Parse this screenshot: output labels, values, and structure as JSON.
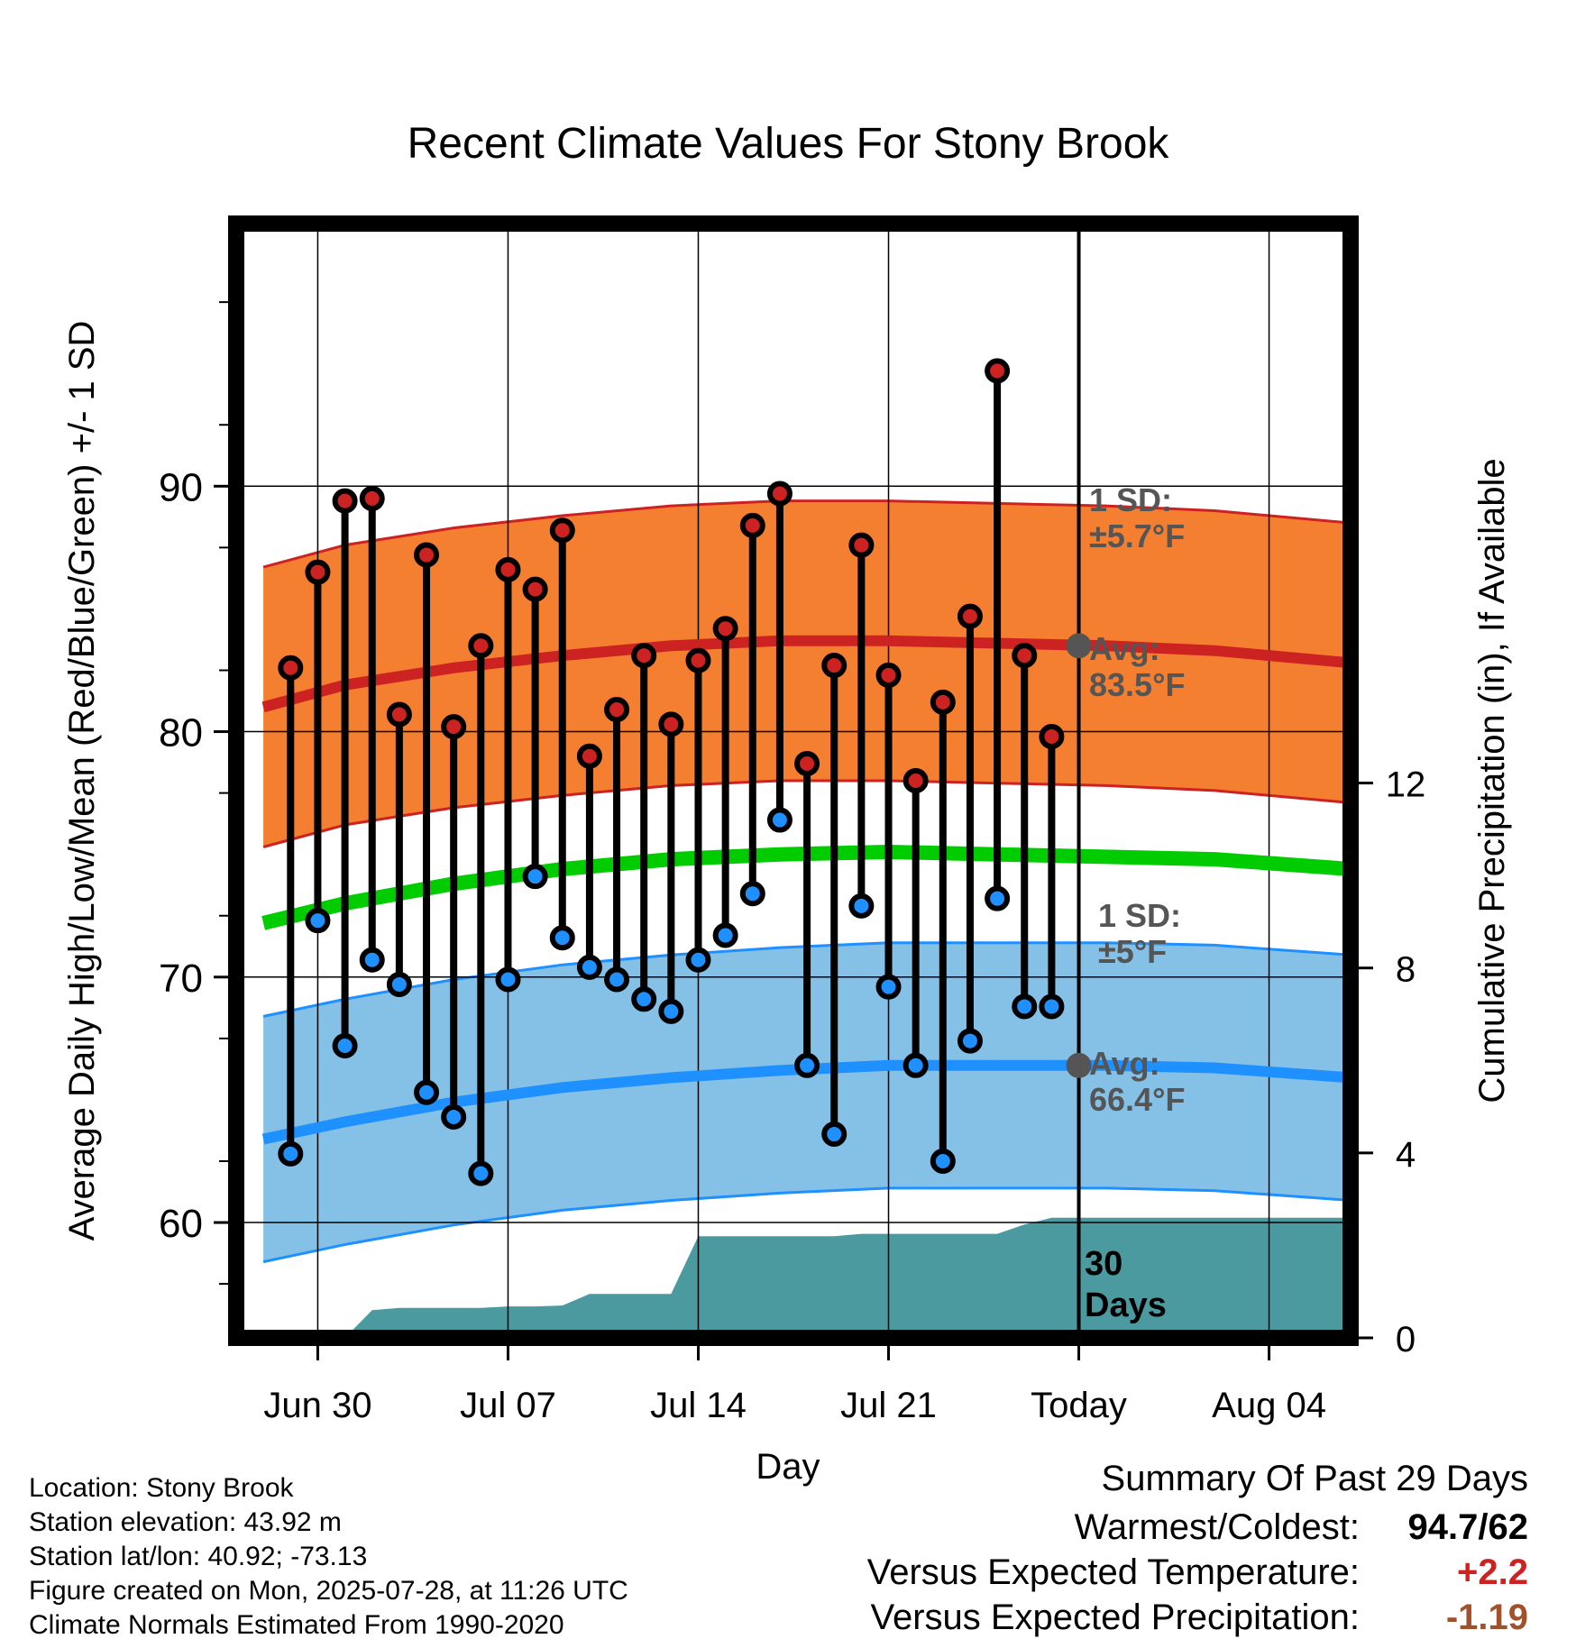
{
  "chart_data": {
    "type": "line",
    "title": "Recent Climate Values For Stony Brook",
    "xlabel": "Day",
    "ylabel": "Average Daily High/Low/Mean (Red/Blue/Green) +/- 1 SD",
    "y2label": "Cumulative Precipitation (in), If Available",
    "x_tick_labels": [
      "Jun 30",
      "Jul 07",
      "Jul 14",
      "Jul 21",
      "Today",
      "Aug 04"
    ],
    "y_ticks": [
      60,
      70,
      80,
      90
    ],
    "y2_ticks": [
      0,
      4,
      8,
      12
    ],
    "ylim": [
      55.3,
      100.7
    ],
    "y2lim": [
      0,
      24.1
    ],
    "grid": true,
    "today_label": "30\nDays",
    "annotations": {
      "high_sd": "1 SD:\n±5.7°F",
      "high_avg": "Avg:\n83.5°F",
      "low_sd": "1 SD:\n±5°F",
      "low_avg": "Avg:\n66.4°F"
    },
    "colors": {
      "high": "#cc2222",
      "high_band": "#f57f30",
      "low": "#1e90ff",
      "low_band": "#85c1e6",
      "mean": "#00cc00",
      "precip": "#4a9aa0",
      "annotation": "#555555"
    },
    "series": [
      {
        "name": "High",
        "x": [
          "2025-06-29",
          "2025-06-30",
          "2025-07-01",
          "2025-07-02",
          "2025-07-03",
          "2025-07-04",
          "2025-07-05",
          "2025-07-06",
          "2025-07-07",
          "2025-07-08",
          "2025-07-09",
          "2025-07-10",
          "2025-07-11",
          "2025-07-12",
          "2025-07-13",
          "2025-07-14",
          "2025-07-15",
          "2025-07-16",
          "2025-07-17",
          "2025-07-18",
          "2025-07-19",
          "2025-07-20",
          "2025-07-21",
          "2025-07-22",
          "2025-07-23",
          "2025-07-24",
          "2025-07-25",
          "2025-07-26",
          "2025-07-27"
        ],
        "values": [
          82.6,
          86.5,
          89.4,
          89.5,
          80.7,
          87.2,
          80.2,
          83.5,
          86.6,
          85.8,
          88.2,
          79.0,
          80.9,
          83.1,
          80.3,
          82.9,
          84.2,
          88.4,
          89.7,
          78.7,
          82.7,
          87.6,
          82.3,
          78.0,
          81.2,
          84.7,
          94.7,
          83.1,
          79.8
        ]
      },
      {
        "name": "Low",
        "x": [
          "2025-06-29",
          "2025-06-30",
          "2025-07-01",
          "2025-07-02",
          "2025-07-03",
          "2025-07-04",
          "2025-07-05",
          "2025-07-06",
          "2025-07-07",
          "2025-07-08",
          "2025-07-09",
          "2025-07-10",
          "2025-07-11",
          "2025-07-12",
          "2025-07-13",
          "2025-07-14",
          "2025-07-15",
          "2025-07-16",
          "2025-07-17",
          "2025-07-18",
          "2025-07-19",
          "2025-07-20",
          "2025-07-21",
          "2025-07-22",
          "2025-07-23",
          "2025-07-24",
          "2025-07-25",
          "2025-07-26",
          "2025-07-27"
        ],
        "values": [
          62.8,
          72.3,
          67.2,
          70.7,
          69.7,
          65.3,
          64.3,
          62.0,
          69.9,
          74.1,
          71.6,
          70.4,
          69.9,
          69.1,
          68.6,
          70.7,
          71.7,
          73.4,
          76.4,
          66.4,
          63.6,
          72.9,
          69.6,
          66.4,
          62.5,
          67.4,
          73.2,
          68.8,
          68.8
        ]
      },
      {
        "name": "Normal High",
        "x": [
          "2025-06-28",
          "2025-07-01",
          "2025-07-05",
          "2025-07-09",
          "2025-07-13",
          "2025-07-17",
          "2025-07-21",
          "2025-07-25",
          "2025-07-29",
          "2025-08-02",
          "2025-08-07"
        ],
        "values": [
          81.0,
          81.9,
          82.6,
          83.1,
          83.5,
          83.7,
          83.7,
          83.6,
          83.5,
          83.3,
          82.8
        ]
      },
      {
        "name": "Normal Low",
        "x": [
          "2025-06-28",
          "2025-07-01",
          "2025-07-05",
          "2025-07-09",
          "2025-07-13",
          "2025-07-17",
          "2025-07-21",
          "2025-07-25",
          "2025-07-29",
          "2025-08-02",
          "2025-08-07"
        ],
        "values": [
          63.4,
          64.1,
          64.9,
          65.5,
          65.9,
          66.2,
          66.4,
          66.4,
          66.4,
          66.3,
          65.9
        ]
      },
      {
        "name": "Normal Mean",
        "x": [
          "2025-06-28",
          "2025-07-01",
          "2025-07-05",
          "2025-07-09",
          "2025-07-13",
          "2025-07-17",
          "2025-07-21",
          "2025-07-25",
          "2025-07-29",
          "2025-08-02",
          "2025-08-07"
        ],
        "values": [
          72.2,
          73.0,
          73.8,
          74.4,
          74.8,
          75.0,
          75.1,
          75.0,
          74.9,
          74.8,
          74.4
        ]
      }
    ],
    "sd": {
      "high": 5.7,
      "low": 5.0
    },
    "precipitation": {
      "x": [
        "2025-06-29",
        "2025-06-30",
        "2025-07-01",
        "2025-07-02",
        "2025-07-03",
        "2025-07-04",
        "2025-07-05",
        "2025-07-06",
        "2025-07-07",
        "2025-07-08",
        "2025-07-09",
        "2025-07-10",
        "2025-07-11",
        "2025-07-12",
        "2025-07-13",
        "2025-07-14",
        "2025-07-15",
        "2025-07-16",
        "2025-07-17",
        "2025-07-18",
        "2025-07-19",
        "2025-07-20",
        "2025-07-21",
        "2025-07-22",
        "2025-07-23",
        "2025-07-24",
        "2025-07-25",
        "2025-07-26",
        "2025-07-27",
        "2025-07-28",
        "2025-08-07"
      ],
      "values": [
        0,
        0,
        0,
        0.6,
        0.65,
        0.65,
        0.65,
        0.65,
        0.68,
        0.68,
        0.7,
        0.95,
        0.95,
        0.95,
        0.95,
        2.2,
        2.2,
        2.2,
        2.2,
        2.2,
        2.2,
        2.25,
        2.25,
        2.25,
        2.25,
        2.25,
        2.25,
        2.45,
        2.6,
        2.6,
        2.6
      ]
    }
  },
  "footer": {
    "location": "Location: Stony Brook",
    "elevation": "Station elevation: 43.92 m",
    "latlon": "Station lat/lon: 40.92; -73.13",
    "created": "Figure created on Mon, 2025-07-28, at 11:26 UTC",
    "normals": "Climate Normals Estimated From 1990-2020"
  },
  "summary": {
    "title": "Summary Of Past 29 Days",
    "warmest_label": "Warmest/Coldest:",
    "warmest_value": "94.7/62",
    "temp_label": "Versus Expected Temperature:",
    "temp_value": "+2.2",
    "temp_color": "#cc2222",
    "precip_label": "Versus Expected Precipitation:",
    "precip_value": "-1.19",
    "precip_color": "#a0522d"
  }
}
